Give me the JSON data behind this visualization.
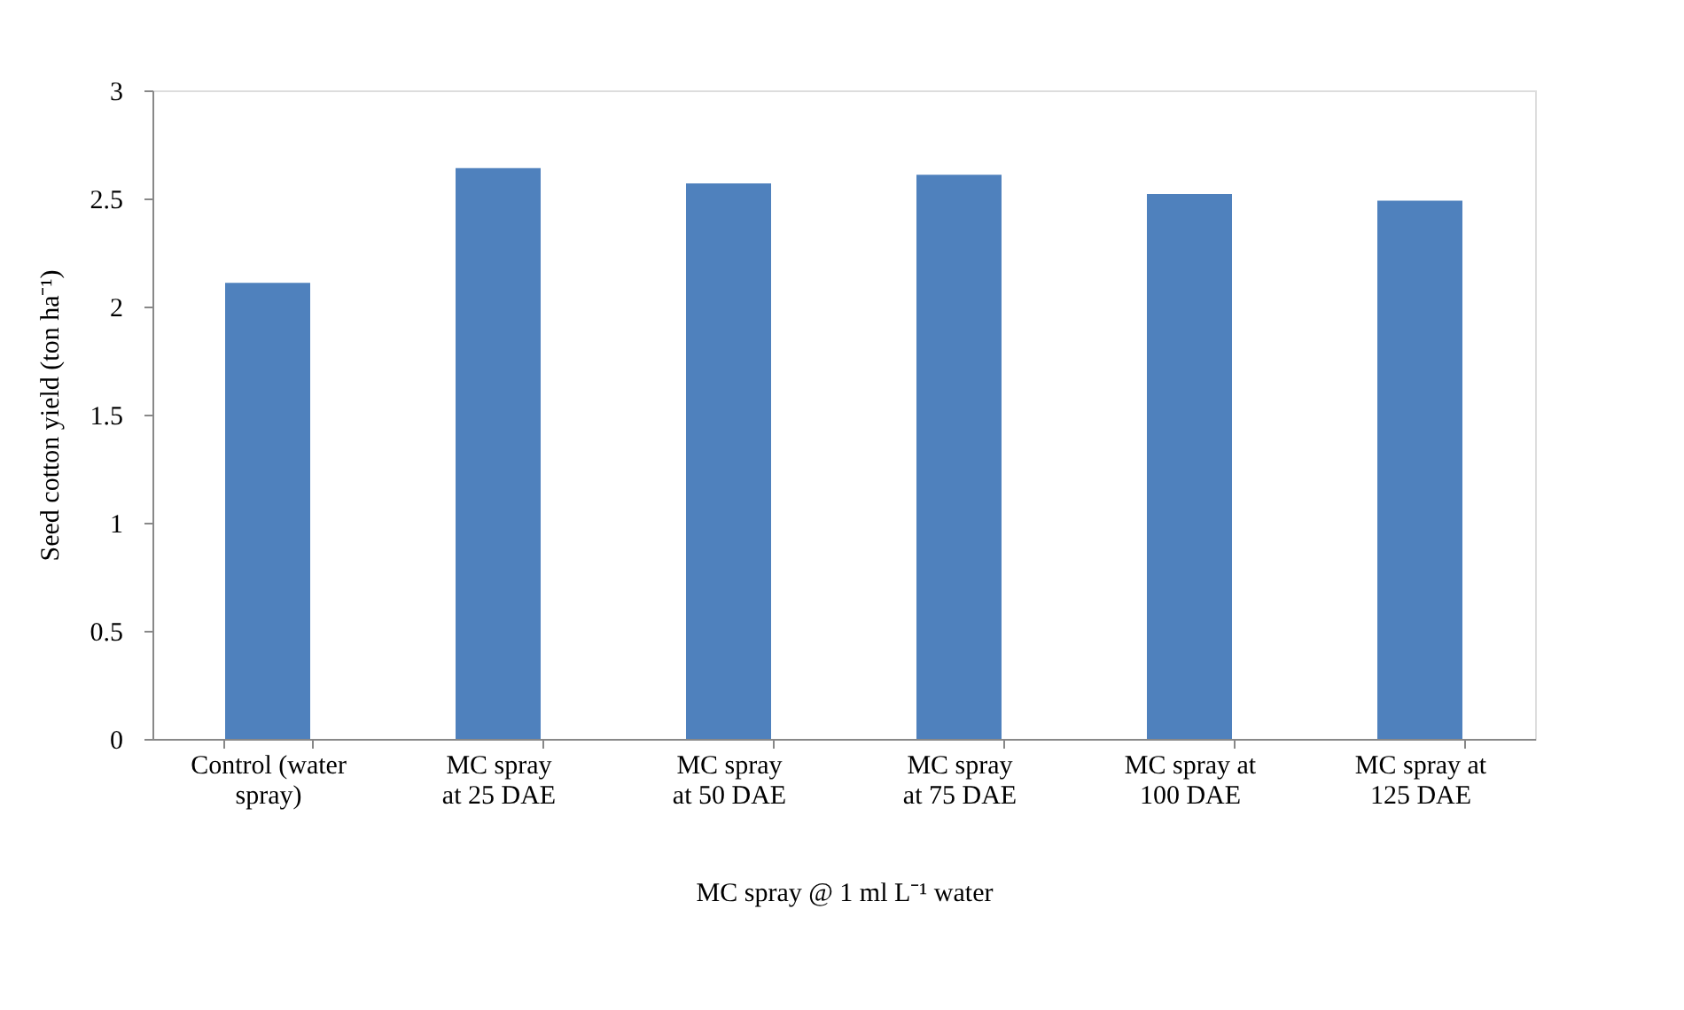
{
  "chart_data": {
    "type": "bar",
    "categories": [
      "Control (water spray)",
      "MC spray at 25 DAE",
      "MC spray at 50 DAE",
      "MC spray at 75 DAE",
      "MC spray at 100 DAE",
      "MC spray at 125 DAE"
    ],
    "values": [
      2.11,
      2.64,
      2.57,
      2.61,
      2.52,
      2.49
    ],
    "color": "#4f81bd",
    "ylim": [
      0,
      3
    ],
    "yticks": [
      0,
      0.5,
      1,
      1.5,
      2,
      2.5,
      3
    ],
    "xlabel": "MC spray @ 1 ml L⁻¹ water",
    "ylabel": "Seed cotton yield (ton ha⁻¹)",
    "grid": false
  }
}
